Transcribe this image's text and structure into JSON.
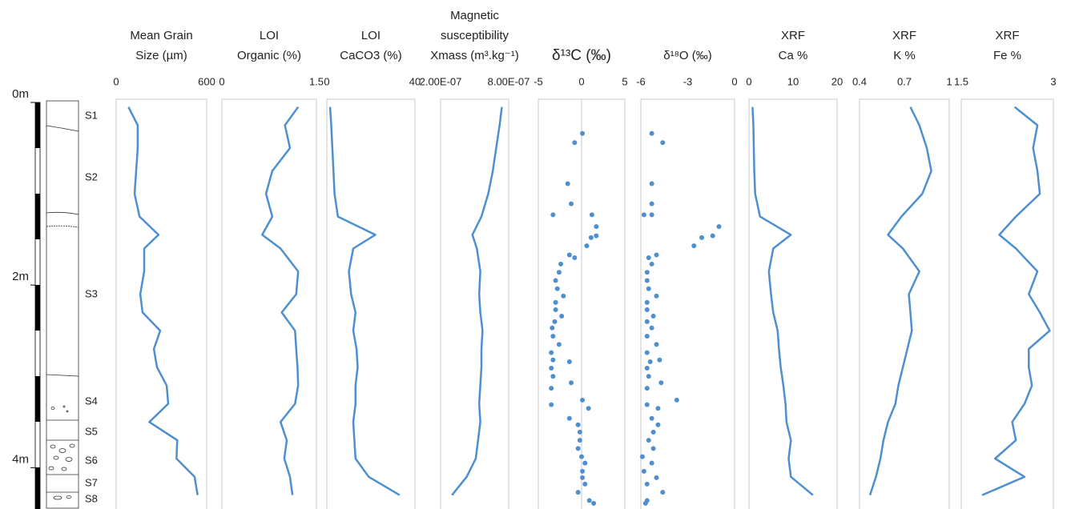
{
  "depth_axis": {
    "ylim": [
      0,
      4.4
    ],
    "yticks": [
      {
        "value": 0,
        "label": "0m"
      },
      {
        "value": 2,
        "label": "2m"
      },
      {
        "value": 4,
        "label": "4m"
      }
    ]
  },
  "units": [
    "S1",
    "S2",
    "S3",
    "S4",
    "S5",
    "S6",
    "S7",
    "S8"
  ],
  "chart_data": [
    {
      "type": "line",
      "title": [
        "Mean Grain",
        "Size (µm)"
      ],
      "color": "#4e8fd0",
      "xlim": [
        0,
        600
      ],
      "xticks": [
        0,
        600
      ],
      "depth": [
        0.05,
        0.25,
        0.5,
        0.75,
        1.0,
        1.25,
        1.45,
        1.6,
        1.85,
        2.1,
        2.3,
        2.5,
        2.7,
        2.9,
        3.1,
        3.3,
        3.5,
        3.7,
        3.9,
        4.1,
        4.3
      ],
      "values": [
        82,
        143,
        143,
        133,
        122,
        155,
        281,
        186,
        186,
        160,
        175,
        292,
        250,
        271,
        335,
        345,
        220,
        405,
        400,
        520,
        540
      ]
    },
    {
      "type": "line",
      "title": [
        "LOI",
        "Organic (%)"
      ],
      "color": "#4e8fd0",
      "xlim": [
        0,
        1.5
      ],
      "xticks": [
        0,
        1.5
      ],
      "depth": [
        0.05,
        0.25,
        0.5,
        0.75,
        1.0,
        1.25,
        1.45,
        1.6,
        1.85,
        2.1,
        2.3,
        2.5,
        2.7,
        2.9,
        3.1,
        3.3,
        3.5,
        3.7,
        3.9,
        4.1,
        4.3
      ],
      "values": [
        1.21,
        1.0,
        1.08,
        0.8,
        0.7,
        0.8,
        0.64,
        0.93,
        1.21,
        1.18,
        0.95,
        1.16,
        1.18,
        1.2,
        1.21,
        1.16,
        0.93,
        1.03,
        0.99,
        1.08,
        1.12
      ]
    },
    {
      "type": "line",
      "title": [
        "LOI",
        "CaCO3 (%)"
      ],
      "color": "#4e8fd0",
      "xlim": [
        0,
        40
      ],
      "xticks": [
        0,
        40
      ],
      "depth": [
        0.05,
        0.25,
        0.5,
        0.75,
        1.0,
        1.25,
        1.45,
        1.6,
        1.85,
        2.1,
        2.3,
        2.5,
        2.7,
        2.9,
        3.1,
        3.3,
        3.5,
        3.7,
        3.9,
        4.1,
        4.3
      ],
      "values": [
        1.5,
        2,
        2.5,
        3,
        3.5,
        5,
        22,
        12,
        10,
        11,
        13,
        12,
        13.5,
        14,
        13,
        13,
        12,
        12.5,
        13,
        19,
        33
      ]
    },
    {
      "type": "line",
      "title": [
        "Magnetic",
        "susceptibility",
        "Xmass (m³.kg⁻¹)"
      ],
      "color": "#4e8fd0",
      "xlim": [
        2e-07,
        8e-07
      ],
      "xticks": [
        {
          "value": 2e-07,
          "label": "2.00E-07"
        },
        {
          "value": 8e-07,
          "label": "8.00E-07"
        }
      ],
      "depth": [
        0.05,
        0.25,
        0.5,
        0.75,
        1.0,
        1.25,
        1.45,
        1.6,
        1.85,
        2.1,
        2.3,
        2.5,
        2.7,
        2.9,
        3.1,
        3.3,
        3.5,
        3.7,
        3.9,
        4.1,
        4.3
      ],
      "values": [
        7.4e-07,
        7.2e-07,
        6.9e-07,
        6.6e-07,
        6.2e-07,
        5.6e-07,
        4.8e-07,
        5.2e-07,
        5.5e-07,
        5.4e-07,
        5.5e-07,
        5.7e-07,
        5.6e-07,
        5.6e-07,
        5.5e-07,
        5.4e-07,
        5.5e-07,
        5.3e-07,
        5.1e-07,
        4.3e-07,
        3e-07
      ]
    },
    {
      "type": "scatter",
      "title": [
        "δ¹³C (‰)"
      ],
      "color": "#4e8fd0",
      "xlim": [
        -5,
        5
      ],
      "xticks": [
        -5,
        0,
        5
      ],
      "zero_line": true,
      "depth": [
        0.34,
        0.44,
        0.89,
        1.11,
        1.23,
        1.23,
        1.36,
        1.46,
        1.48,
        1.57,
        1.67,
        1.7,
        1.77,
        1.86,
        1.95,
        2.04,
        2.12,
        2.19,
        2.27,
        2.34,
        2.4,
        2.47,
        2.56,
        2.65,
        2.74,
        2.82,
        2.84,
        2.91,
        3.0,
        3.07,
        3.13,
        3.26,
        3.31,
        3.35,
        3.46,
        3.53,
        3.61,
        3.7,
        3.79,
        3.88,
        3.95,
        4.04,
        4.11,
        4.18,
        4.27,
        4.36,
        4.39
      ],
      "values": [
        0.1,
        -0.8,
        -1.6,
        -1.2,
        -3.3,
        1.2,
        1.7,
        1.7,
        1.1,
        0.6,
        -1.4,
        -0.8,
        -2.4,
        -2.6,
        -3.0,
        -2.8,
        -2.1,
        -3.0,
        -3.0,
        -2.3,
        -3.1,
        -3.4,
        -3.3,
        -2.6,
        -3.5,
        -3.3,
        -1.4,
        -3.5,
        -3.3,
        -1.2,
        -3.5,
        0.1,
        -3.5,
        0.8,
        -1.4,
        -0.4,
        -0.2,
        -0.2,
        -0.4,
        0.0,
        0.4,
        0.1,
        0.1,
        0.4,
        -0.4,
        0.9,
        1.4
      ]
    },
    {
      "type": "scatter",
      "title": [
        "δ¹⁸O (‰)"
      ],
      "color": "#4e8fd0",
      "xlim": [
        -6,
        0
      ],
      "xticks": [
        -6,
        -3,
        0
      ],
      "depth": [
        0.34,
        0.44,
        0.89,
        1.11,
        1.23,
        1.23,
        1.36,
        1.46,
        1.48,
        1.57,
        1.67,
        1.7,
        1.77,
        1.86,
        1.95,
        2.04,
        2.12,
        2.19,
        2.27,
        2.34,
        2.4,
        2.47,
        2.56,
        2.65,
        2.74,
        2.82,
        2.84,
        2.91,
        3.0,
        3.07,
        3.13,
        3.26,
        3.31,
        3.35,
        3.46,
        3.53,
        3.61,
        3.7,
        3.79,
        3.88,
        3.95,
        4.04,
        4.11,
        4.18,
        4.27,
        4.36,
        4.39
      ],
      "values": [
        -5.3,
        -4.6,
        -5.3,
        -5.3,
        -5.8,
        -5.3,
        -1.0,
        -1.4,
        -2.1,
        -2.6,
        -5.0,
        -5.5,
        -5.3,
        -5.6,
        -5.6,
        -5.5,
        -5.0,
        -5.6,
        -5.6,
        -5.2,
        -5.6,
        -5.3,
        -5.6,
        -5.0,
        -5.6,
        -4.8,
        -5.4,
        -5.6,
        -5.5,
        -4.7,
        -5.6,
        -3.7,
        -5.6,
        -4.9,
        -5.3,
        -4.9,
        -5.2,
        -5.5,
        -5.2,
        -5.9,
        -5.3,
        -5.8,
        -5.0,
        -5.6,
        -4.6,
        -5.6,
        -5.7
      ]
    },
    {
      "type": "line",
      "title": [
        "XRF",
        "Ca %"
      ],
      "color": "#4e8fd0",
      "xlim": [
        0,
        20
      ],
      "xticks": [
        0,
        10,
        20
      ],
      "depth": [
        0.05,
        0.25,
        0.5,
        0.75,
        1.0,
        1.25,
        1.45,
        1.6,
        1.85,
        2.1,
        2.3,
        2.5,
        2.7,
        2.9,
        3.1,
        3.3,
        3.5,
        3.7,
        3.9,
        4.1,
        4.3
      ],
      "values": [
        0.8,
        1.0,
        1.1,
        1.2,
        1.4,
        2.5,
        9.5,
        5.5,
        4.5,
        5.0,
        5.5,
        6.5,
        6.8,
        7.2,
        7.8,
        8.3,
        8.5,
        9.5,
        9.0,
        9.5,
        14.5
      ]
    },
    {
      "type": "line",
      "title": [
        "XRF",
        "K %"
      ],
      "color": "#4e8fd0",
      "xlim": [
        0.4,
        1
      ],
      "xticks": [
        0.4,
        0.7,
        1
      ],
      "depth": [
        0.05,
        0.25,
        0.5,
        0.75,
        1.0,
        1.25,
        1.45,
        1.6,
        1.85,
        2.1,
        2.3,
        2.5,
        2.7,
        2.9,
        3.1,
        3.3,
        3.5,
        3.7,
        3.9,
        4.1,
        4.3
      ],
      "values": [
        0.74,
        0.8,
        0.85,
        0.88,
        0.82,
        0.68,
        0.59,
        0.69,
        0.8,
        0.73,
        0.74,
        0.75,
        0.72,
        0.69,
        0.66,
        0.64,
        0.59,
        0.56,
        0.54,
        0.51,
        0.47
      ]
    },
    {
      "type": "line",
      "title": [
        "XRF",
        "Fe %"
      ],
      "color": "#4e8fd0",
      "xlim": [
        1.5,
        3
      ],
      "xticks": [
        1.5,
        3
      ],
      "depth": [
        0.05,
        0.25,
        0.5,
        0.75,
        1.0,
        1.25,
        1.45,
        1.6,
        1.85,
        2.1,
        2.3,
        2.5,
        2.7,
        2.9,
        3.1,
        3.3,
        3.5,
        3.7,
        3.9,
        4.1,
        4.3
      ],
      "values": [
        2.37,
        2.74,
        2.67,
        2.74,
        2.78,
        2.39,
        2.12,
        2.39,
        2.74,
        2.6,
        2.78,
        2.94,
        2.6,
        2.6,
        2.65,
        2.53,
        2.33,
        2.39,
        2.05,
        2.53,
        1.84
      ]
    }
  ]
}
